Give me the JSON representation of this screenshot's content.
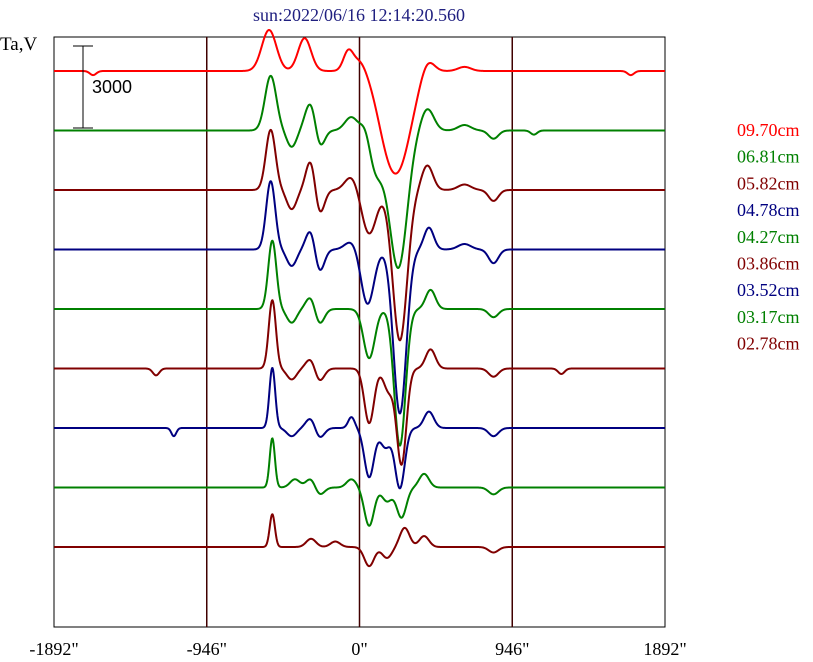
{
  "chart_data": {
    "type": "line",
    "title": "sun:2022/06/16 12:14:20.560",
    "ylabel": "Ta,V",
    "scale_bar_label": "3000",
    "xlim": [
      -1892,
      1892
    ],
    "x_ticks": [
      {
        "value": -1892,
        "label": "-1892\""
      },
      {
        "value": -946,
        "label": "-946\""
      },
      {
        "value": 0,
        "label": "0\""
      },
      {
        "value": 946,
        "label": "946\""
      },
      {
        "value": 1892,
        "label": "1892\""
      }
    ],
    "vertical_gridlines": [
      -946,
      0,
      946
    ],
    "legend_position": "right",
    "series": [
      {
        "name": "09.70cm",
        "color": "#ff0000",
        "offset": 0,
        "features": [
          [
            -560,
            1500,
            45
          ],
          [
            -340,
            1200,
            40
          ],
          [
            -70,
            700,
            30
          ],
          [
            0,
            400,
            40
          ],
          [
            150,
            -900,
            60
          ],
          [
            240,
            -3400,
            80
          ],
          [
            420,
            500,
            40
          ],
          [
            650,
            150,
            40
          ],
          [
            1680,
            -150,
            20
          ],
          [
            -1650,
            -150,
            20
          ]
        ]
      },
      {
        "name": "06.81cm",
        "color": "#008000",
        "offset": -1,
        "features": [
          [
            -550,
            2000,
            35
          ],
          [
            -420,
            -600,
            30
          ],
          [
            -300,
            1100,
            35
          ],
          [
            -250,
            -800,
            30
          ],
          [
            -50,
            500,
            40
          ],
          [
            40,
            600,
            30
          ],
          [
            100,
            -1500,
            50
          ],
          [
            240,
            -5000,
            55
          ],
          [
            420,
            800,
            40
          ],
          [
            650,
            200,
            40
          ],
          [
            830,
            -300,
            30
          ],
          [
            1080,
            -150,
            20
          ]
        ]
      },
      {
        "name": "05.82cm",
        "color": "#800000",
        "offset": -2,
        "features": [
          [
            -550,
            2200,
            30
          ],
          [
            -420,
            -700,
            30
          ],
          [
            -300,
            1200,
            30
          ],
          [
            -250,
            -1000,
            30
          ],
          [
            -50,
            500,
            40
          ],
          [
            60,
            -1600,
            45
          ],
          [
            250,
            -5500,
            45
          ],
          [
            420,
            900,
            35
          ],
          [
            650,
            200,
            40
          ],
          [
            830,
            -400,
            30
          ]
        ]
      },
      {
        "name": "04.78cm",
        "color": "#000080",
        "offset": -3,
        "features": [
          [
            -550,
            2500,
            28
          ],
          [
            -420,
            -600,
            30
          ],
          [
            -300,
            800,
            30
          ],
          [
            -250,
            -900,
            30
          ],
          [
            -50,
            300,
            40
          ],
          [
            50,
            -2000,
            40
          ],
          [
            250,
            -6000,
            40
          ],
          [
            430,
            800,
            30
          ],
          [
            650,
            200,
            40
          ],
          [
            830,
            -500,
            30
          ]
        ]
      },
      {
        "name": "04.27cm",
        "color": "#008000",
        "offset": -4,
        "features": [
          [
            -540,
            2500,
            25
          ],
          [
            -420,
            -500,
            30
          ],
          [
            -300,
            500,
            30
          ],
          [
            -250,
            -600,
            30
          ],
          [
            60,
            -1800,
            35
          ],
          [
            250,
            -5000,
            35
          ],
          [
            440,
            700,
            30
          ],
          [
            830,
            -300,
            30
          ]
        ]
      },
      {
        "name": "03.86cm",
        "color": "#800000",
        "offset": -5,
        "features": [
          [
            -540,
            2500,
            22
          ],
          [
            -420,
            -400,
            30
          ],
          [
            -300,
            400,
            30
          ],
          [
            -250,
            -500,
            30
          ],
          [
            60,
            -2000,
            30
          ],
          [
            180,
            -800,
            30
          ],
          [
            260,
            -3500,
            30
          ],
          [
            440,
            700,
            30
          ],
          [
            830,
            -300,
            30
          ],
          [
            -1260,
            -250,
            20
          ],
          [
            1250,
            -200,
            20
          ]
        ]
      },
      {
        "name": "03.52cm",
        "color": "#000080",
        "offset": -6,
        "features": [
          [
            -540,
            2200,
            18
          ],
          [
            -420,
            -300,
            30
          ],
          [
            -300,
            400,
            30
          ],
          [
            -250,
            -400,
            30
          ],
          [
            -50,
            400,
            20
          ],
          [
            60,
            -1800,
            30
          ],
          [
            160,
            -700,
            30
          ],
          [
            250,
            -2200,
            30
          ],
          [
            430,
            600,
            30
          ],
          [
            830,
            -300,
            30
          ],
          [
            -1150,
            -300,
            15
          ]
        ]
      },
      {
        "name": "03.17cm",
        "color": "#008000",
        "offset": -7,
        "features": [
          [
            -540,
            1800,
            16
          ],
          [
            -400,
            300,
            30
          ],
          [
            -300,
            350,
            30
          ],
          [
            -250,
            -300,
            30
          ],
          [
            -50,
            300,
            30
          ],
          [
            60,
            -1400,
            30
          ],
          [
            170,
            -500,
            30
          ],
          [
            260,
            -1100,
            30
          ],
          [
            400,
            500,
            30
          ],
          [
            830,
            -250,
            30
          ]
        ]
      },
      {
        "name": "02.78cm",
        "color": "#800000",
        "offset": -8,
        "features": [
          [
            -540,
            1200,
            16
          ],
          [
            -300,
            300,
            30
          ],
          [
            -150,
            200,
            30
          ],
          [
            60,
            -700,
            30
          ],
          [
            170,
            -400,
            30
          ],
          [
            280,
            700,
            30
          ],
          [
            400,
            400,
            30
          ],
          [
            830,
            -200,
            30
          ]
        ]
      }
    ]
  }
}
